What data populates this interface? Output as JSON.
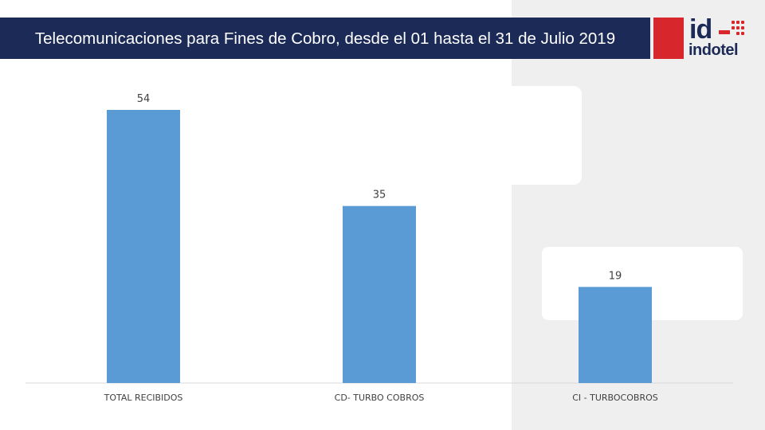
{
  "title": "Telecomunicaciones para Fines de Cobro, desde el 01 hasta el 31 de Julio 2019",
  "logo": {
    "mark_text": "id",
    "name_text": "indotel",
    "colors": {
      "navy": "#1b2a57",
      "red": "#d8262d"
    }
  },
  "colors": {
    "banner": "#1b2a57",
    "bar": "#5b9bd5",
    "axis": "#d9d9d9",
    "label": "#404040"
  },
  "chart_data": {
    "type": "bar",
    "categories": [
      "TOTAL RECIBIDOS",
      "CD- TURBO COBROS",
      "CI - TURBOCOBROS"
    ],
    "values": [
      54,
      35,
      19
    ],
    "title": "",
    "xlabel": "",
    "ylabel": "",
    "ylim": [
      0,
      54
    ],
    "grid": false,
    "legend": "none",
    "data_labels": true
  }
}
